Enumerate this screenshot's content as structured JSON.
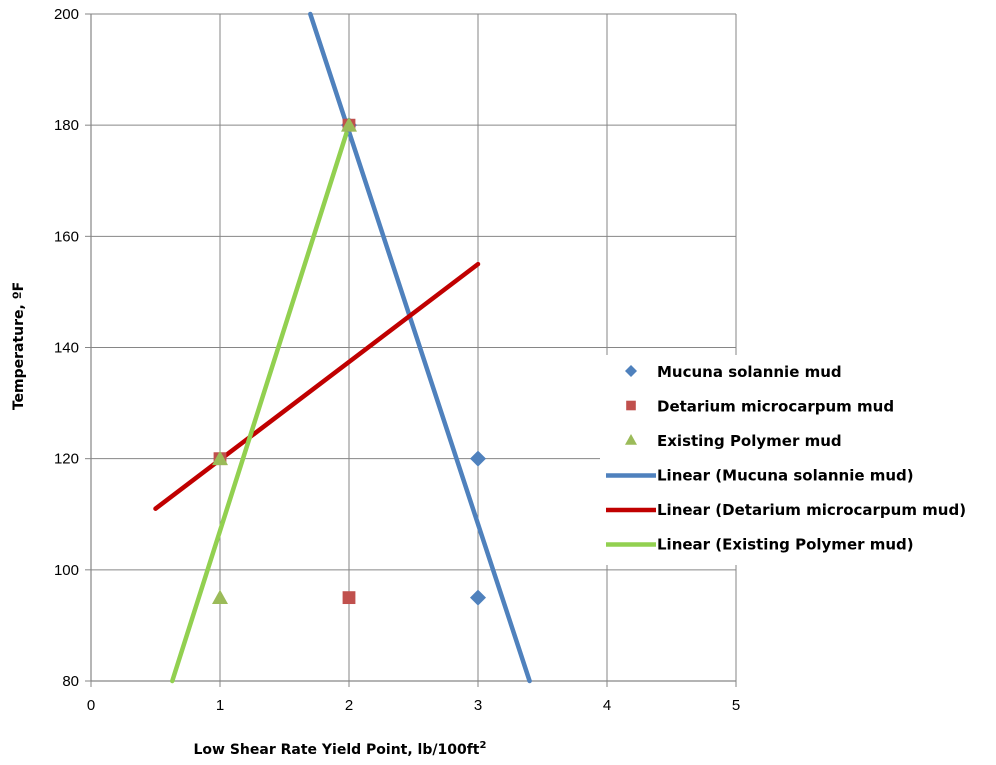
{
  "chart_data": {
    "type": "scatter",
    "xlabel": "Low Shear Rate Yield Point, lb/100ft",
    "xlabel_sup": "2",
    "ylabel": "Temperature, ºF",
    "xlim": [
      0,
      5
    ],
    "ylim": [
      80,
      200
    ],
    "x_ticks": [
      0,
      1,
      2,
      3,
      4,
      5
    ],
    "y_ticks": [
      80,
      100,
      120,
      140,
      160,
      180,
      200
    ],
    "grid": true,
    "legend_position": "right",
    "series": [
      {
        "name": "Mucuna solannie mud",
        "marker": "diamond",
        "color": "#4F81BD",
        "x": [
          2,
          3,
          3
        ],
        "y": [
          180,
          120,
          95
        ]
      },
      {
        "name": "Detarium microcarpum mud",
        "marker": "square",
        "color": "#C0504D",
        "x": [
          1,
          2,
          2
        ],
        "y": [
          120,
          180,
          95
        ]
      },
      {
        "name": "Existing Polymer mud",
        "marker": "triangle",
        "color": "#9BBB59",
        "x": [
          1,
          2,
          1
        ],
        "y": [
          120,
          180,
          95
        ]
      }
    ],
    "trendlines": [
      {
        "name": "Linear (Mucuna solannie mud)",
        "color": "#4F81BD",
        "x": [
          1.7,
          3.4
        ],
        "y": [
          200,
          80
        ]
      },
      {
        "name": "Linear (Detarium microcarpum mud)",
        "color": "#C00000",
        "x": [
          0.5,
          3.0
        ],
        "y": [
          111,
          155
        ]
      },
      {
        "name": "Linear (Existing Polymer mud)",
        "color": "#92D050",
        "x": [
          0.63,
          2.0
        ],
        "y": [
          80,
          180
        ]
      }
    ]
  }
}
